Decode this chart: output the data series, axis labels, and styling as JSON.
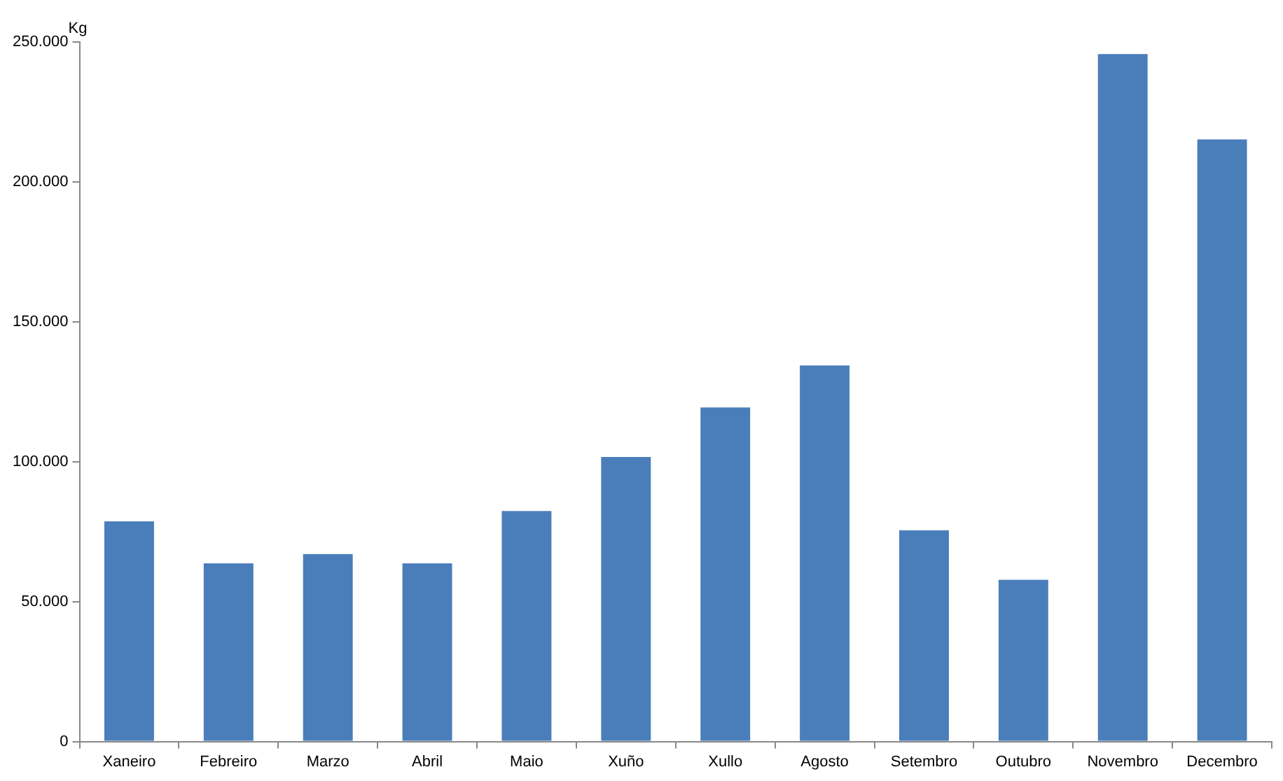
{
  "chart_data": {
    "type": "bar",
    "ylabel": "Kg",
    "categories": [
      "Xaneiro",
      "Febreiro",
      "Marzo",
      "Abril",
      "Maio",
      "Xuño",
      "Xullo",
      "Agosto",
      "Setembro",
      "Outubro",
      "Novembro",
      "Decembro"
    ],
    "values": [
      78700,
      63700,
      67000,
      63700,
      82400,
      101700,
      119400,
      134400,
      75500,
      57800,
      245700,
      215200
    ],
    "color": "#4a7ebb",
    "ylim": [
      0,
      250000
    ],
    "yticks": [
      {
        "value": 0,
        "label": "0"
      },
      {
        "value": 50000,
        "label": "50.000"
      },
      {
        "value": 100000,
        "label": "100.000"
      },
      {
        "value": 150000,
        "label": "150.000"
      },
      {
        "value": 200000,
        "label": "200.000"
      },
      {
        "value": 250000,
        "label": "250.000"
      }
    ],
    "grid": false,
    "legend": false
  }
}
